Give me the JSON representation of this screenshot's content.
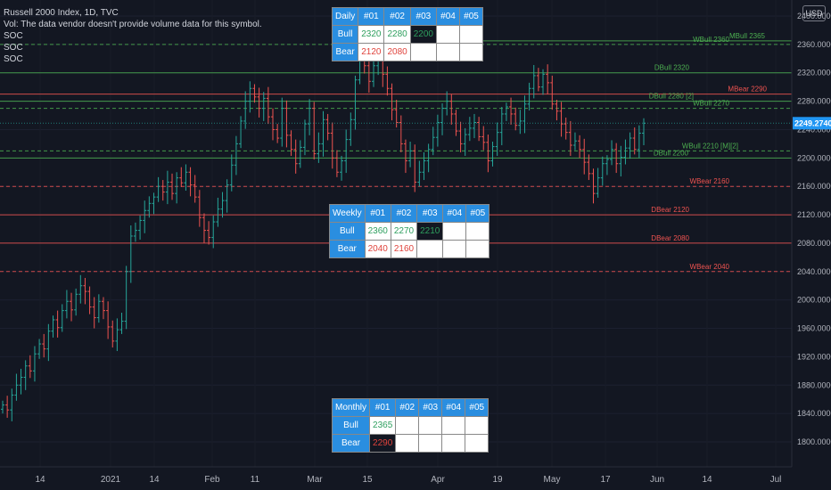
{
  "header": {
    "title": "Russell 2000 Index, 1D, TVC",
    "vol_note": "Vol: The data vendor doesn't provide volume data for this symbol.",
    "indicators": [
      "SOC",
      "SOC",
      "SOC"
    ],
    "currency": "USD"
  },
  "colors": {
    "background": "#131722",
    "bull_line": "#4caf50",
    "bear_line": "#ef5350",
    "candle_up": "#26a69a",
    "candle_down": "#ef5350",
    "table_header": "#2a8ee0",
    "bull_text": "#2e9f5e",
    "bear_text": "#e0433c"
  },
  "tables": {
    "daily": {
      "title": "Daily",
      "cols": [
        "#01",
        "#02",
        "#03",
        "#04",
        "#05"
      ],
      "bull_label": "Bull",
      "bear_label": "Bear",
      "bull": [
        "2320",
        "2280",
        "2200",
        "",
        ""
      ],
      "bear": [
        "2120",
        "2080",
        "",
        "",
        ""
      ],
      "bull_active": 2,
      "bear_active": -1
    },
    "weekly": {
      "title": "Weekly",
      "cols": [
        "#01",
        "#02",
        "#03",
        "#04",
        "#05"
      ],
      "bull_label": "Bull",
      "bear_label": "Bear",
      "bull": [
        "2360",
        "2270",
        "2210",
        "",
        ""
      ],
      "bear": [
        "2040",
        "2160",
        "",
        "",
        ""
      ],
      "bull_active": 2,
      "bear_active": -1
    },
    "monthly": {
      "title": "Monthly",
      "cols": [
        "#01",
        "#02",
        "#03",
        "#04",
        "#05"
      ],
      "bull_label": "Bull",
      "bear_label": "Bear",
      "bull": [
        "2365",
        "",
        "",
        "",
        ""
      ],
      "bear": [
        "2290",
        "",
        "",
        "",
        ""
      ],
      "bull_active": -1,
      "bear_active": 0
    }
  },
  "chart_data": {
    "type": "line",
    "symbol": "Russell 2000 Index",
    "current_price": "2249.2740",
    "ylim": [
      1770,
      2430
    ],
    "y_ticks": [
      "2400.0000",
      "2360.0000",
      "2320.0000",
      "2280.0000",
      "2240.0000",
      "2200.0000",
      "2160.0000",
      "2120.0000",
      "2080.0000",
      "2040.0000",
      "2000.0000",
      "1960.0000",
      "1920.0000",
      "1880.0000",
      "1840.0000",
      "1800.0000"
    ],
    "x_ticks": [
      "14",
      "2021",
      "14",
      "Feb",
      "11",
      "Mar",
      "15",
      "Apr",
      "19",
      "May",
      "17",
      "Jun",
      "14",
      "Jul"
    ],
    "levels": [
      {
        "label": "MBull 2365",
        "value": 2365,
        "type": "bull",
        "style": "solid"
      },
      {
        "label": "WBull 2360",
        "value": 2360,
        "type": "bull",
        "style": "dashed"
      },
      {
        "label": "DBull 2320",
        "value": 2320,
        "type": "bull",
        "style": "solid"
      },
      {
        "label": "MBear 2290",
        "value": 2290,
        "type": "bear",
        "style": "solid"
      },
      {
        "label": "DBull 2280 [2]",
        "value": 2280,
        "type": "bull",
        "style": "solid"
      },
      {
        "label": "WBull 2270",
        "value": 2270,
        "type": "bull",
        "style": "dashed"
      },
      {
        "label": "WBull 2210 [M][2]",
        "value": 2210,
        "type": "bull",
        "style": "dashed"
      },
      {
        "label": "DBull 2200",
        "value": 2200,
        "type": "bull",
        "style": "solid"
      },
      {
        "label": "WBear 2160",
        "value": 2160,
        "type": "bear",
        "style": "dashed"
      },
      {
        "label": "DBear 2120",
        "value": 2120,
        "type": "bear",
        "style": "solid"
      },
      {
        "label": "DBear 2080",
        "value": 2080,
        "type": "bear",
        "style": "solid"
      },
      {
        "label": "WBear 2040",
        "value": 2040,
        "type": "bear",
        "style": "dashed"
      }
    ],
    "closes": [
      1852,
      1845,
      1866,
      1880,
      1891,
      1907,
      1900,
      1924,
      1938,
      1931,
      1956,
      1972,
      1961,
      1985,
      1998,
      1986,
      2008,
      2020,
      2012,
      1990,
      1975,
      1998,
      1985,
      1962,
      1942,
      1958,
      1970,
      2040,
      2090,
      2098,
      2112,
      2126,
      2136,
      2145,
      2160,
      2152,
      2166,
      2150,
      2172,
      2165,
      2180,
      2162,
      2145,
      2116,
      2098,
      2088,
      2110,
      2128,
      2140,
      2162,
      2190,
      2220,
      2252,
      2280,
      2298,
      2286,
      2270,
      2284,
      2258,
      2240,
      2228,
      2270,
      2232,
      2212,
      2192,
      2215,
      2248,
      2270,
      2206,
      2220,
      2254,
      2235,
      2200,
      2180,
      2196,
      2226,
      2254,
      2310,
      2346,
      2330,
      2308,
      2330,
      2342,
      2318,
      2298,
      2268,
      2250,
      2220,
      2196,
      2210,
      2166,
      2180,
      2196,
      2212,
      2229,
      2250,
      2270,
      2280,
      2262,
      2238,
      2220,
      2233,
      2242,
      2250,
      2230,
      2222,
      2196,
      2216,
      2236,
      2262,
      2272,
      2262,
      2246,
      2252,
      2276,
      2298,
      2316,
      2300,
      2318,
      2306,
      2276,
      2266,
      2248,
      2236,
      2218,
      2224,
      2212,
      2194,
      2178,
      2150,
      2172,
      2192,
      2198,
      2212,
      2192,
      2201,
      2214,
      2228,
      2212,
      2235,
      2249
    ]
  }
}
